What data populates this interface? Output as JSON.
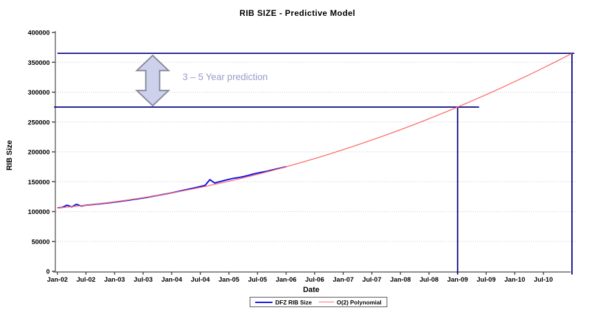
{
  "title": "RIB SIZE - Predictive Model",
  "annotation": {
    "text": "3 – 5 Year prediction",
    "arrow_month": 20,
    "arrow_from_value": 275000,
    "arrow_to_value": 365000
  },
  "legend": {
    "items": [
      {
        "label": "DFZ RIB Size",
        "series": "actual"
      },
      {
        "label": "O(2) Polynomial",
        "series": "fit"
      }
    ]
  },
  "colors": {
    "actual": "#0f0fe8",
    "fit": "#ff6a6a",
    "reference": "#000080",
    "axis": "#8c8c8c",
    "tick": "#4a4a4a",
    "grid": "#cdcdcd",
    "text": "#000000",
    "annotation_text": "#9a9acc",
    "arrow_fill": "#cdd1ec",
    "arrow_border": "#8b8b9e"
  },
  "chart_data": {
    "type": "line",
    "title": "RIB SIZE - Predictive Model",
    "xlabel": "Date",
    "ylabel": "RIB Size",
    "x_unit": "months since Jan-2002",
    "xlim": [
      0,
      108
    ],
    "ylim": [
      0,
      400000
    ],
    "grid": "horizontal-dotted",
    "legend_position": "bottom-center",
    "y_ticks": [
      0,
      50000,
      100000,
      150000,
      200000,
      250000,
      300000,
      350000,
      400000
    ],
    "x_ticks": [
      {
        "month": 0,
        "label": "Jan-02"
      },
      {
        "month": 6,
        "label": "Jul-02"
      },
      {
        "month": 12,
        "label": "Jan-03"
      },
      {
        "month": 18,
        "label": "Jul-03"
      },
      {
        "month": 24,
        "label": "Jan-04"
      },
      {
        "month": 30,
        "label": "Jul-04"
      },
      {
        "month": 36,
        "label": "Jan-05"
      },
      {
        "month": 42,
        "label": "Jul-05"
      },
      {
        "month": 48,
        "label": "Jan-06"
      },
      {
        "month": 54,
        "label": "Jul-06"
      },
      {
        "month": 60,
        "label": "Jan-07"
      },
      {
        "month": 66,
        "label": "Jul-07"
      },
      {
        "month": 72,
        "label": "Jan-08"
      },
      {
        "month": 78,
        "label": "Jul-08"
      },
      {
        "month": 84,
        "label": "Jan-09"
      },
      {
        "month": 90,
        "label": "Jul-09"
      },
      {
        "month": 96,
        "label": "Jan-10"
      },
      {
        "month": 102,
        "label": "Jul-10"
      },
      {
        "month": 108,
        "label": ""
      }
    ],
    "series": [
      {
        "name": "DFZ RIB Size",
        "color_key": "actual",
        "width": 2,
        "x": [
          0,
          1,
          2,
          3,
          4,
          5,
          6,
          7,
          8,
          9,
          10,
          11,
          12,
          13,
          14,
          15,
          16,
          17,
          18,
          19,
          20,
          21,
          22,
          23,
          24,
          25,
          26,
          27,
          28,
          29,
          30,
          31,
          32,
          33,
          34,
          35,
          36,
          37,
          38,
          39,
          40,
          41,
          42,
          43,
          44,
          45,
          46,
          47,
          48
        ],
        "values": [
          106200,
          106900,
          110800,
          107900,
          112300,
          109300,
          110800,
          111500,
          112300,
          113100,
          114000,
          114900,
          115900,
          116900,
          118000,
          119100,
          120300,
          121500,
          122800,
          124100,
          125500,
          126900,
          128400,
          129900,
          131500,
          133100,
          134800,
          136500,
          138300,
          140100,
          142000,
          143900,
          153500,
          147900,
          150000,
          152000,
          154000,
          155800,
          157000,
          158500,
          160500,
          162500,
          164500,
          166000,
          167500,
          169500,
          171500,
          173300,
          175200
        ]
      },
      {
        "name": "O(2) Polynomial",
        "color_key": "fit",
        "width": 1.3,
        "x": [
          0,
          3,
          6,
          9,
          12,
          15,
          18,
          21,
          24,
          27,
          30,
          33,
          36,
          39,
          42,
          45,
          48,
          51,
          54,
          57,
          60,
          63,
          66,
          69,
          72,
          75,
          78,
          81,
          84,
          87,
          90,
          93,
          96,
          99,
          102,
          105,
          108
        ],
        "values": [
          106000,
          108151,
          110590,
          113317,
          116332,
          119635,
          123226,
          127105,
          131272,
          135727,
          140470,
          145501,
          150820,
          156427,
          162322,
          168505,
          174976,
          181735,
          188782,
          196117,
          203740,
          211651,
          219850,
          228337,
          237112,
          246175,
          255526,
          265165,
          275092,
          285307,
          295810,
          306601,
          317680,
          329047,
          340702,
          352645,
          364876
        ]
      }
    ],
    "reference_lines": [
      {
        "h_value": 365000,
        "h_from_month": 0,
        "h_to_month": 108.5,
        "v_at_month": 108
      },
      {
        "h_value": 275000,
        "h_from_month": -0.7,
        "h_to_month": 88.5,
        "v_at_month": 84
      }
    ]
  }
}
